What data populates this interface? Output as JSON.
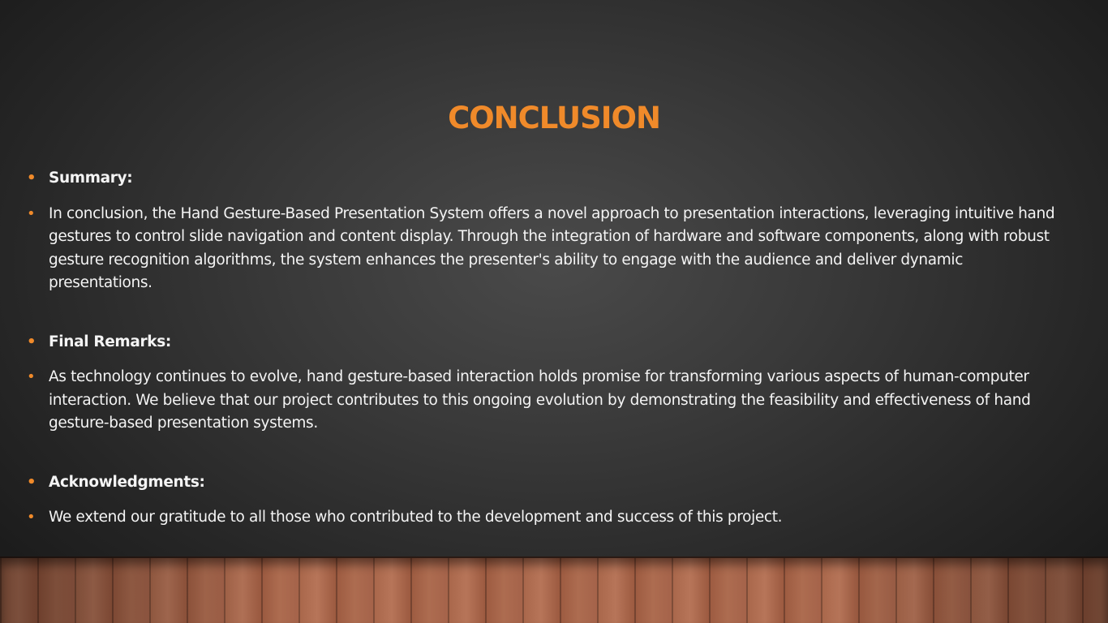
{
  "slide": {
    "title": "CONCLUSION",
    "accent_color": "#f08a2a",
    "bullets": [
      {
        "style": "heading",
        "text": "Summary:"
      },
      {
        "style": "body",
        "text": "In conclusion, the Hand Gesture-Based Presentation System offers a novel approach to presentation interactions, leveraging intuitive hand gestures to control slide navigation and content display. Through the integration of hardware and software components, along with robust gesture recognition algorithms, the system enhances the presenter's ability to engage with the audience and deliver dynamic presentations."
      },
      {
        "style": "heading",
        "text": "Final Remarks:"
      },
      {
        "style": "body",
        "text": "As technology continues to evolve, hand gesture-based interaction holds promise for transforming various aspects of human-computer interaction. We believe that our project contributes to this ongoing evolution by demonstrating the feasibility and effectiveness of hand gesture-based presentation systems."
      },
      {
        "style": "heading",
        "text": "Acknowledgments:"
      },
      {
        "style": "body",
        "text": "We extend our gratitude to all those who contributed to the development and success of this project."
      }
    ],
    "bullet_glyph": "•",
    "background": "dark-gradient-with-wood-floor"
  }
}
